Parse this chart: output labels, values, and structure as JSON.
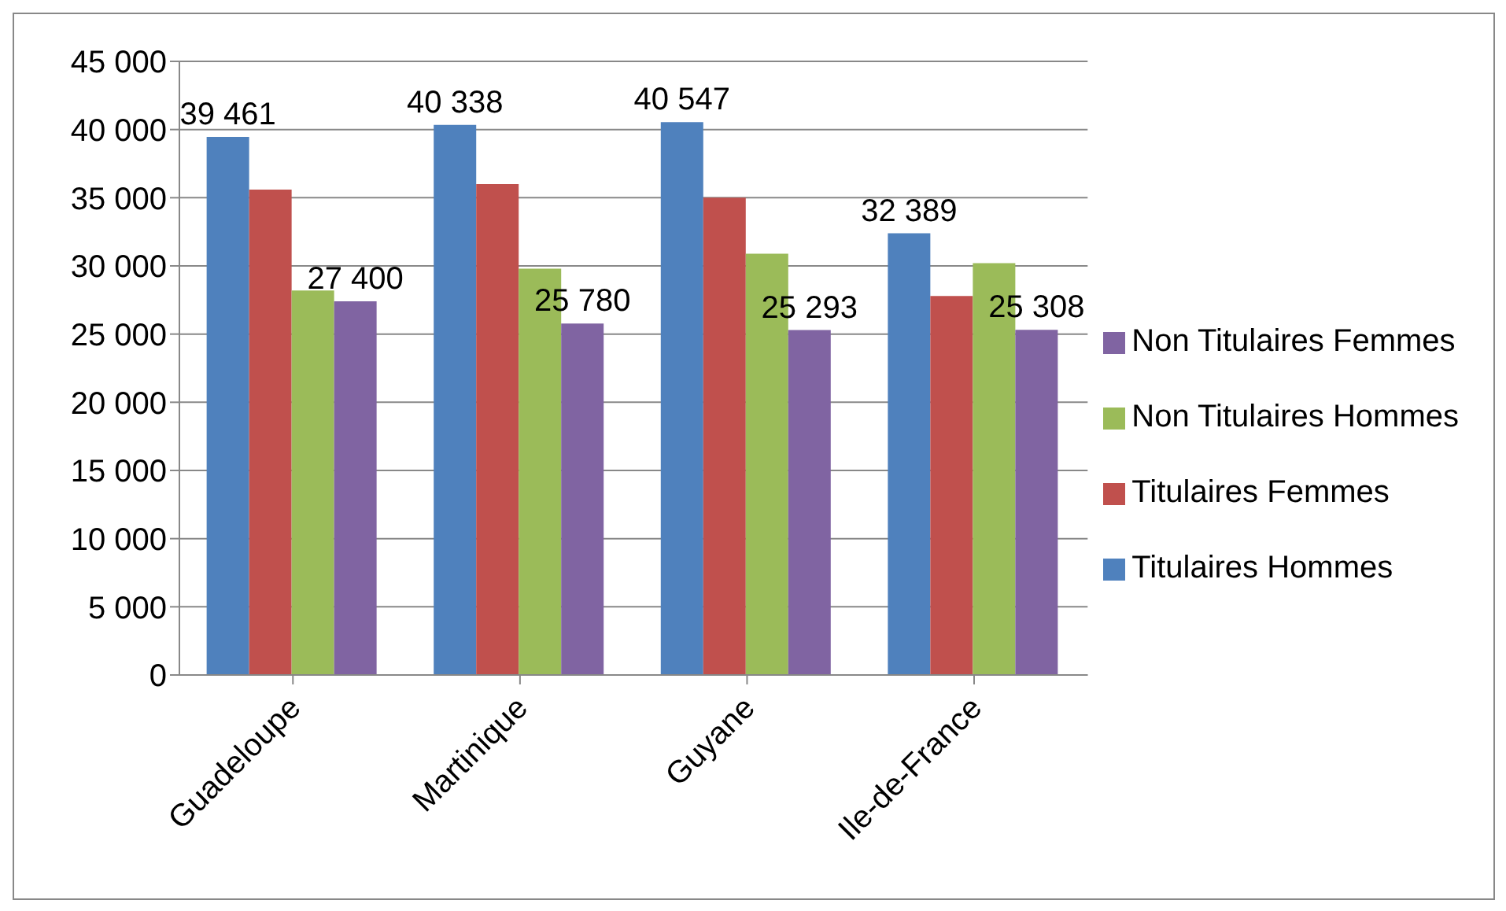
{
  "chart_data": {
    "type": "bar",
    "categories": [
      "Guadeloupe",
      "Martinique",
      "Guyane",
      "Ile-de-France"
    ],
    "series": [
      {
        "name": "Titulaires Hommes",
        "color": "#4f81bd",
        "values": [
          39461,
          40338,
          40547,
          32389
        ],
        "value_labels": [
          "39 461",
          "40 338",
          "40 547",
          "32 389"
        ]
      },
      {
        "name": "Titulaires Femmes",
        "color": "#c0504d",
        "values": [
          35600,
          36000,
          35000,
          27800
        ]
      },
      {
        "name": "Non Titulaires Hommes",
        "color": "#9bbb59",
        "values": [
          28200,
          29800,
          30900,
          30200
        ]
      },
      {
        "name": "Non Titulaires Femmes",
        "color": "#8064a2",
        "values": [
          27400,
          25780,
          25293,
          25308
        ],
        "value_labels": [
          "27 400",
          "25 780",
          "25 293",
          "25 308"
        ]
      }
    ],
    "ylim": [
      0,
      45000
    ],
    "yticks": [
      {
        "value": 0,
        "label": "0"
      },
      {
        "value": 5000,
        "label": "5 000"
      },
      {
        "value": 10000,
        "label": "10 000"
      },
      {
        "value": 15000,
        "label": "15 000"
      },
      {
        "value": 20000,
        "label": "20 000"
      },
      {
        "value": 25000,
        "label": "25 000"
      },
      {
        "value": 30000,
        "label": "30 000"
      },
      {
        "value": 35000,
        "label": "35 000"
      },
      {
        "value": 40000,
        "label": "40 000"
      },
      {
        "value": 45000,
        "label": "45 000"
      }
    ],
    "grid": "y",
    "legend": "right"
  }
}
